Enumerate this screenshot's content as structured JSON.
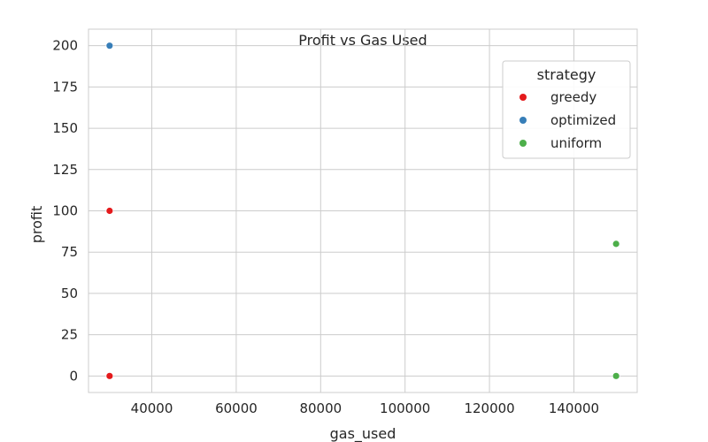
{
  "chart_data": {
    "type": "scatter",
    "title": "Profit vs Gas Used",
    "xlabel": "gas_used",
    "ylabel": "profit",
    "xlim": [
      25000,
      155000
    ],
    "ylim": [
      -10,
      210
    ],
    "xticks": [
      40000,
      60000,
      80000,
      100000,
      120000,
      140000
    ],
    "yticks": [
      0,
      25,
      50,
      75,
      100,
      125,
      150,
      175,
      200
    ],
    "grid": true,
    "legend": {
      "title": "strategy",
      "position": "top-right"
    },
    "series": [
      {
        "name": "greedy",
        "color": "#e41a1c",
        "points": [
          {
            "x": 30000,
            "y": 100
          },
          {
            "x": 30000,
            "y": 0
          }
        ]
      },
      {
        "name": "optimized",
        "color": "#377eb8",
        "points": [
          {
            "x": 30000,
            "y": 200
          }
        ]
      },
      {
        "name": "uniform",
        "color": "#4daf4a",
        "points": [
          {
            "x": 150000,
            "y": 80
          },
          {
            "x": 150000,
            "y": 0
          }
        ]
      }
    ]
  }
}
